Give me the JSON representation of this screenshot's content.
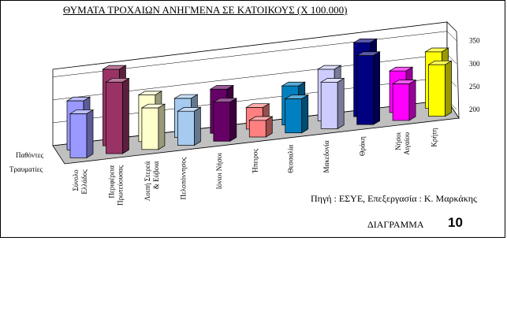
{
  "page": {
    "title": "ΘΥΜΑΤΑ ΤΡΟΧΑΙΩΝ ΑΝΗΓΜΕΝΑ ΣΕ ΚΑΤΟΙΚΟΥΣ (Χ 100.000)",
    "source": "Πηγή : ΕΣΥΕ, Επεξεργασία : Κ. Μαρκάκης",
    "diagram_label": "ΔΙΑΓΡΑΜΜΑ",
    "diagram_number": "10"
  },
  "chart_data": {
    "type": "bar",
    "title": "ΘΥΜΑΤΑ ΤΡΟΧΑΙΩΝ ΑΝΗΓΜΕΝΑ ΣΕ ΚΑΤΟΙΚΟΥΣ (Χ 100.000)",
    "categories": [
      "Σύνολο Ελλάδος",
      "Περιφέρεια Πρωτεύουσας",
      "Λοιπή Στερεά & Εύβοια",
      "Πελοπόννησος",
      "Ιόνιοι Νήσοι",
      "Ήπειρος",
      "Θεσσαλία",
      "Μακεδονία",
      "Θράκη",
      "Νήσοι Αιγαίου",
      "Κρήτη"
    ],
    "series": [
      {
        "name": "Παθόντες",
        "values": [
          270,
          325,
          265,
          250,
          260,
          215,
          250,
          275,
          320,
          255,
          285
        ]
      },
      {
        "name": "Τραυματίες",
        "values": [
          260,
          315,
          255,
          240,
          250,
          205,
          240,
          265,
          310,
          245,
          275
        ]
      }
    ],
    "colors": [
      "#9999ff",
      "#993366",
      "#ffffcc",
      "#a6caf0",
      "#660066",
      "#ff8080",
      "#0080c0",
      "#ccccff",
      "#000080",
      "#ff00ff",
      "#ffff00"
    ],
    "ylim": [
      200,
      350
    ],
    "yticks": [
      200,
      250,
      300,
      350
    ],
    "grid": true
  }
}
